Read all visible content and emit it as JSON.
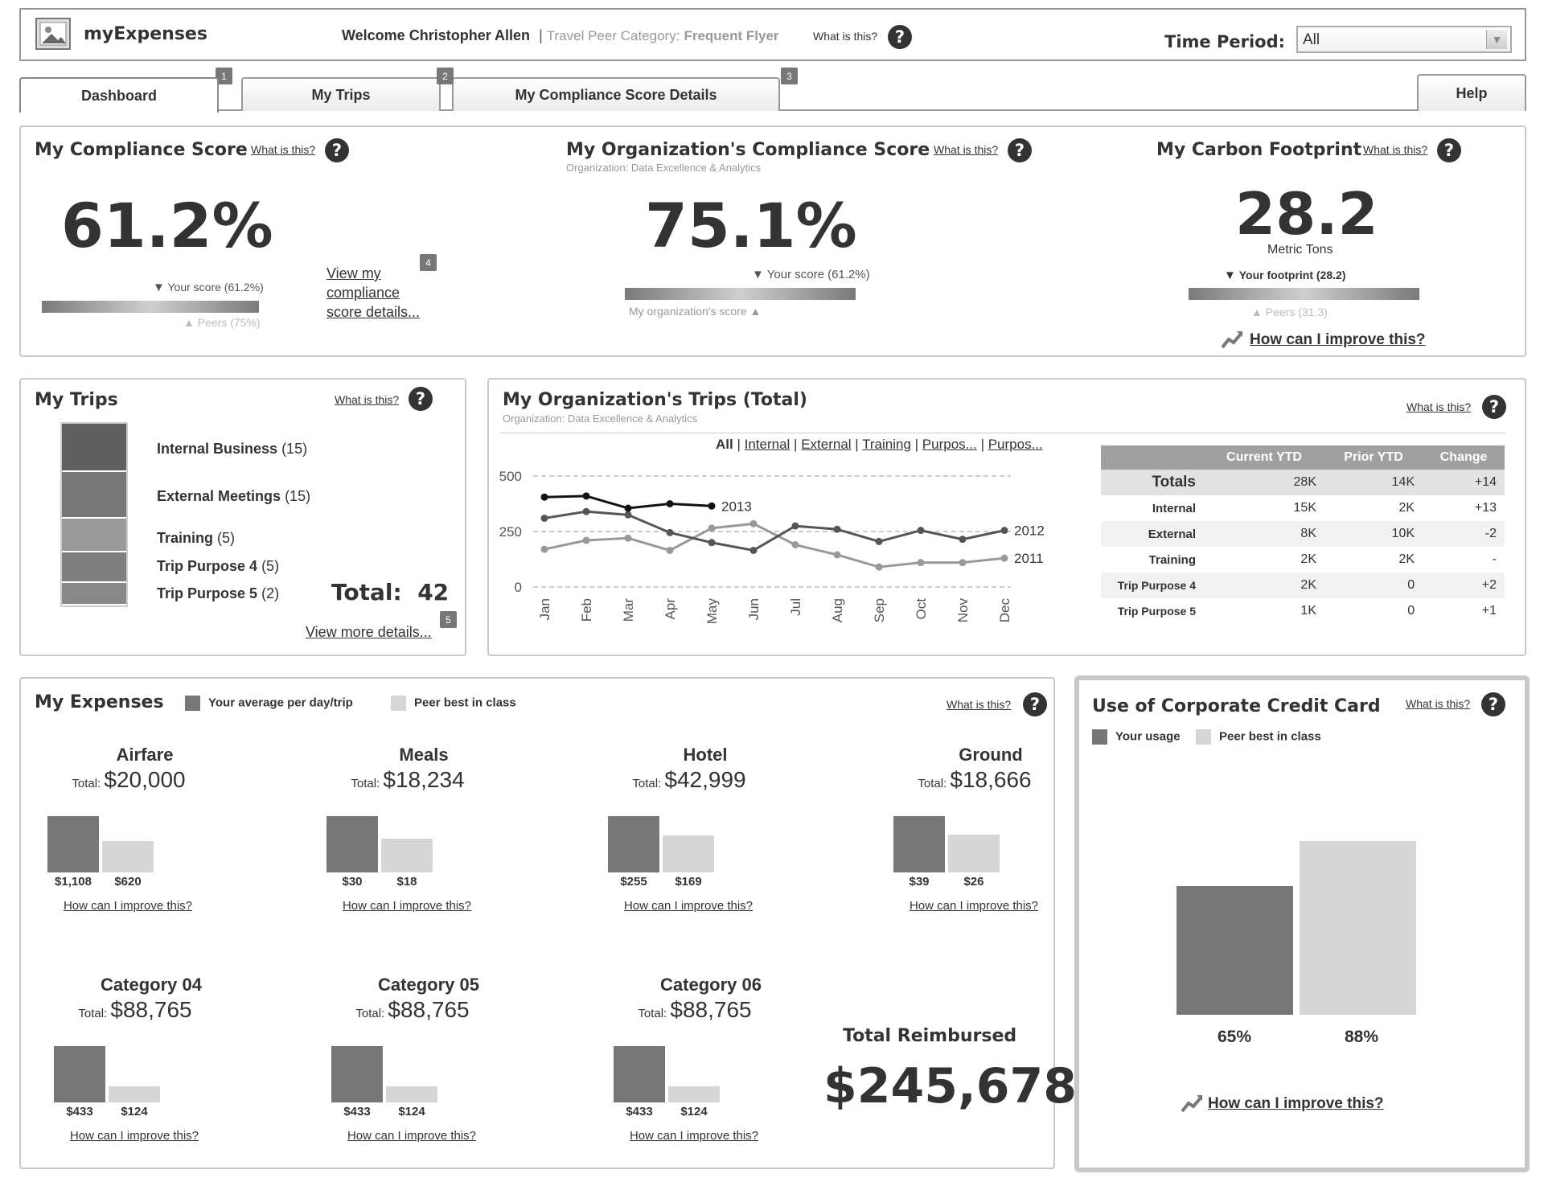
{
  "header": {
    "app_title": "myExpenses",
    "welcome": "Welcome Christopher Allen",
    "separator": "|",
    "peer_label": "Travel Peer Category:",
    "peer_value": "Frequent Flyer",
    "what_is_this": "What is this?",
    "time_period_label": "Time Period:",
    "time_period_value": "All"
  },
  "tabs": [
    {
      "label": "Dashboard",
      "badge": "1"
    },
    {
      "label": "My Trips",
      "badge": "2"
    },
    {
      "label": "My Compliance Score Details",
      "badge": "3"
    },
    {
      "label": "Help"
    }
  ],
  "compliance": {
    "title": "My Compliance Score",
    "what": "What is this?",
    "score": "61.2%",
    "your_score": "Your score (61.2%)",
    "peers": "Peers (75%)",
    "link": "View my compliance score details...",
    "badge": "4"
  },
  "org_compliance": {
    "title": "My Organization's Compliance Score",
    "what": "What is this?",
    "org": "Organization: Data Excellence & Analytics",
    "score": "75.1%",
    "your_score": "Your score (61.2%)",
    "org_score": "My organization's score"
  },
  "carbon": {
    "title": "My Carbon Footprint",
    "what": "What is this?",
    "value": "28.2",
    "unit": "Metric Tons",
    "your_footprint": "Your footprint (28.2)",
    "peers": "Peers (31.3)",
    "improve": "How can I improve this?"
  },
  "my_trips": {
    "title": "My Trips",
    "what": "What is this?",
    "items": [
      {
        "name": "Internal Business",
        "count": "(15)",
        "color": "#5f5f5f"
      },
      {
        "name": "External Meetings",
        "count": "(15)",
        "color": "#777777"
      },
      {
        "name": "Training",
        "count": "(5)",
        "color": "#9a9a9a"
      },
      {
        "name": "Trip Purpose 4",
        "count": "(5)",
        "color": "#7f7f7f"
      },
      {
        "name": "Trip Purpose 5",
        "count": "(2)",
        "color": "#888888"
      }
    ],
    "total_label": "Total:",
    "total_value": "42",
    "more": "View more details...",
    "badge": "5"
  },
  "org_trips": {
    "title": "My Organization's Trips (Total)",
    "what": "What is this?",
    "org": "Organization: Data Excellence & Analytics",
    "filters": [
      "All",
      "Internal",
      "External",
      "Training",
      "Purpos...",
      "Purpos..."
    ],
    "table": {
      "headers": [
        "",
        "Current YTD",
        "Prior YTD",
        "Change"
      ],
      "rows": [
        [
          "Totals",
          "28K",
          "14K",
          "+14"
        ],
        [
          "Internal",
          "15K",
          "2K",
          "+13"
        ],
        [
          "External",
          "8K",
          "10K",
          "-2"
        ],
        [
          "Training",
          "2K",
          "2K",
          "-"
        ],
        [
          "Trip Purpose 4",
          "2K",
          "0",
          "+2"
        ],
        [
          "Trip Purpose 5",
          "1K",
          "0",
          "+1"
        ]
      ]
    }
  },
  "chart_data": {
    "type": "line",
    "categories": [
      "Jan",
      "Feb",
      "Mar",
      "Apr",
      "May",
      "Jun",
      "Jul",
      "Aug",
      "Sep",
      "Oct",
      "Nov",
      "Dec"
    ],
    "ylim": [
      0,
      500
    ],
    "yticks": [
      "500",
      "250",
      "0"
    ],
    "grid": true,
    "series": [
      {
        "name": "2013",
        "values": [
          405,
          410,
          355,
          375,
          365,
          null,
          null,
          null,
          null,
          null,
          null,
          null
        ],
        "color": "#111111"
      },
      {
        "name": "2012",
        "values": [
          310,
          340,
          325,
          245,
          200,
          165,
          275,
          260,
          205,
          255,
          215,
          255
        ],
        "color": "#555555"
      },
      {
        "name": "2011",
        "values": [
          170,
          210,
          220,
          165,
          265,
          285,
          190,
          145,
          90,
          110,
          110,
          130
        ],
        "color": "#999999"
      }
    ]
  },
  "expenses": {
    "title": "My Expenses",
    "legend_avg": "Your average per day/trip",
    "legend_peer": "Peer best in class",
    "what": "What is this?",
    "total_label": "Total:",
    "improve": "How can I improve this?",
    "categories": [
      {
        "name": "Airfare",
        "total": "$20,000",
        "yours": "$1,108",
        "peer": "$620",
        "yours_val": 1108,
        "peer_val": 620
      },
      {
        "name": "Meals",
        "total": "$18,234",
        "yours": "$30",
        "peer": "$18",
        "yours_val": 30,
        "peer_val": 18
      },
      {
        "name": "Hotel",
        "total": "$42,999",
        "yours": "$255",
        "peer": "$169",
        "yours_val": 255,
        "peer_val": 169
      },
      {
        "name": "Ground",
        "total": "$18,666",
        "yours": "$39",
        "peer": "$26",
        "yours_val": 39,
        "peer_val": 26
      },
      {
        "name": "Category 04",
        "total": "$88,765",
        "yours": "$433",
        "peer": "$124",
        "yours_val": 433,
        "peer_val": 124
      },
      {
        "name": "Category 05",
        "total": "$88,765",
        "yours": "$433",
        "peer": "$124",
        "yours_val": 433,
        "peer_val": 124
      },
      {
        "name": "Category 06",
        "total": "$88,765",
        "yours": "$433",
        "peer": "$124",
        "yours_val": 433,
        "peer_val": 124
      }
    ],
    "reimbursed_label": "Total Reimbursed",
    "reimbursed_value": "$245,678"
  },
  "credit_card": {
    "title": "Use of Corporate Credit Card",
    "what": "What is this?",
    "legend_usage": "Your usage",
    "legend_peer": "Peer best in class",
    "usage": "65%",
    "peer": "88%",
    "usage_val": 65,
    "peer_val": 88,
    "improve": "How can I improve this?"
  }
}
